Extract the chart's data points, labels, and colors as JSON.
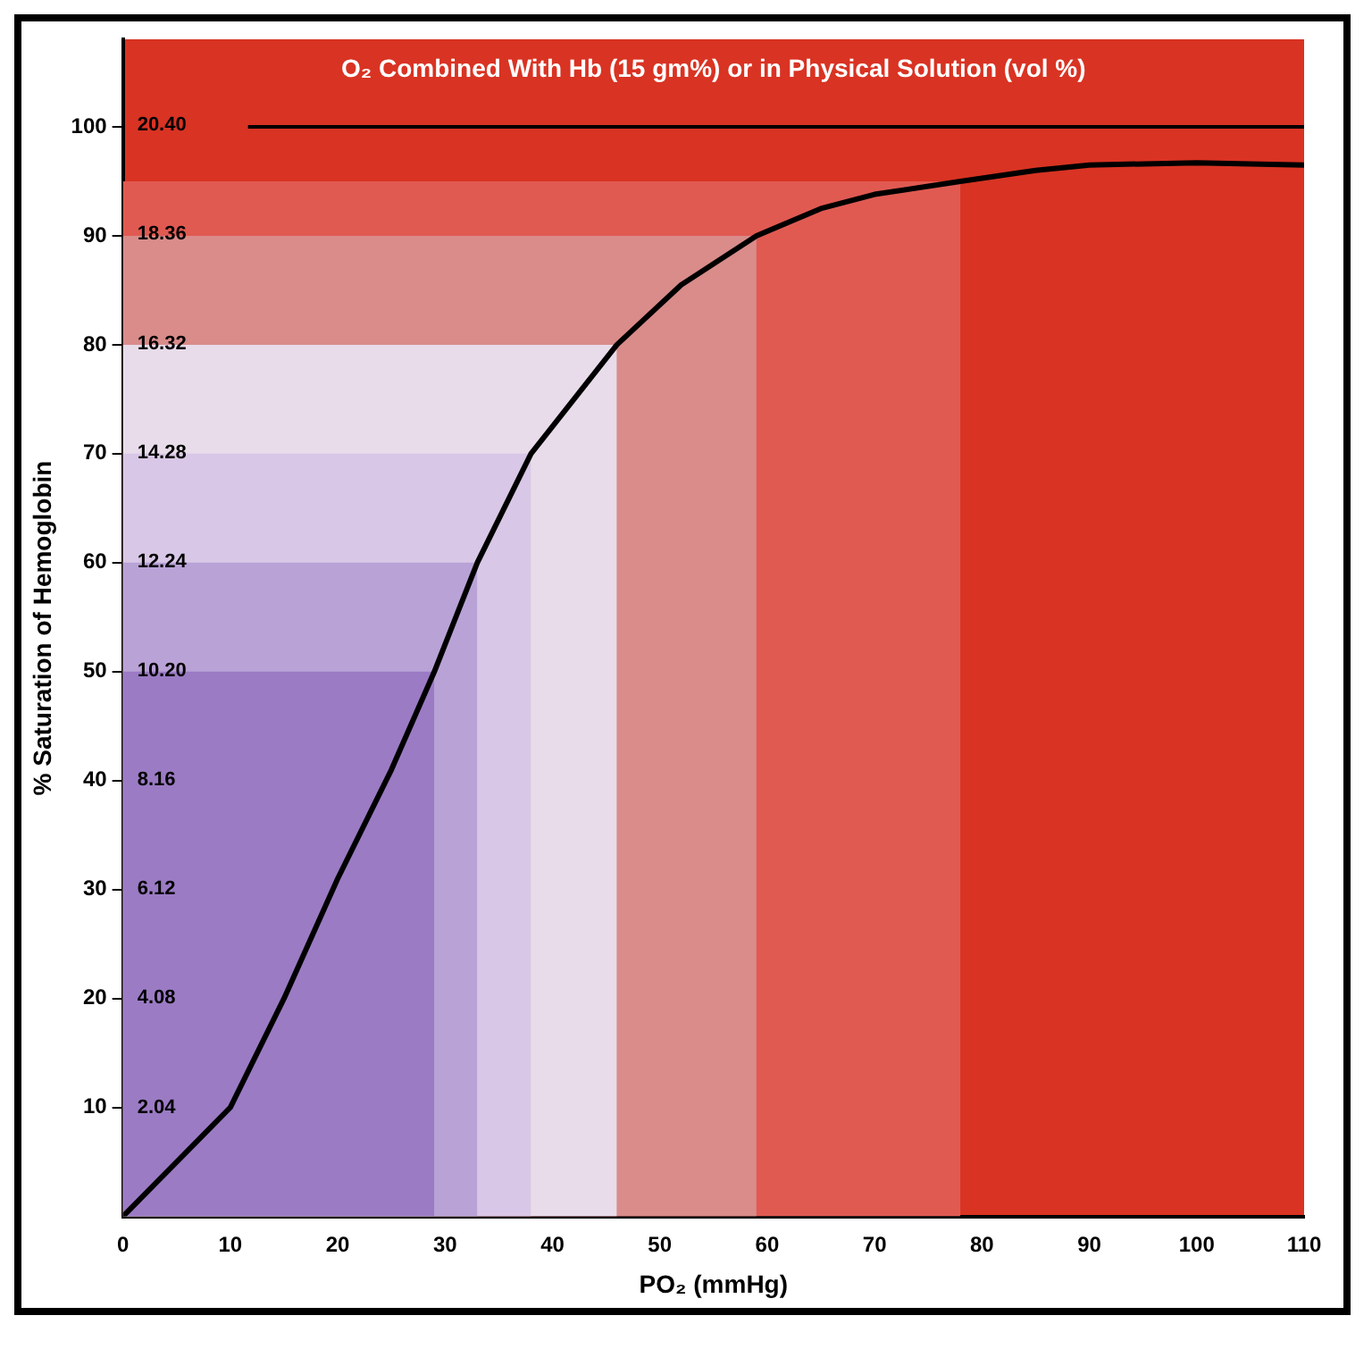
{
  "chart_data": {
    "type": "line",
    "title": "O₂ Combined With Hb (15 gm%) or in Physical Solution (vol %)",
    "xlabel": "PO₂ (mmHg)",
    "ylabel": "% Saturation of Hemoglobin",
    "xlim": [
      0,
      110
    ],
    "xticks": [
      0,
      10,
      20,
      30,
      40,
      50,
      60,
      70,
      80,
      90,
      100,
      110
    ],
    "ylim": [
      0,
      108
    ],
    "yticks": [
      10,
      20,
      30,
      40,
      50,
      60,
      70,
      80,
      90,
      100
    ],
    "y2lim": [
      0,
      22.0
    ],
    "y2ticks": [
      2.04,
      4.08,
      6.12,
      8.16,
      {
        "value": 10.2,
        "label": "10.20"
      },
      12.24,
      14.28,
      16.32,
      18.36,
      {
        "value": 20.4,
        "label": "20.40"
      }
    ],
    "grid": false,
    "legend": false,
    "marker": "none",
    "ref_lines": [
      {
        "axis": "y",
        "value": 100,
        "color": "#000000"
      }
    ],
    "series": [
      {
        "type": "area",
        "color": "#e05a52",
        "x": [
          0,
          78
        ],
        "values": [
          95,
          95
        ]
      },
      {
        "type": "area",
        "color": "#d98c8a",
        "x": [
          0,
          59
        ],
        "values": [
          90,
          90
        ]
      },
      {
        "type": "area",
        "color": "#e8dcea",
        "x": [
          0,
          46
        ],
        "values": [
          80,
          80
        ]
      },
      {
        "type": "area",
        "color": "#d8c7e6",
        "x": [
          0,
          38
        ],
        "values": [
          70,
          70
        ]
      },
      {
        "type": "area",
        "color": "#b9a2d6",
        "x": [
          0,
          33
        ],
        "values": [
          60,
          60
        ]
      },
      {
        "type": "area",
        "color": "#9b7bc4",
        "x": [
          0,
          29
        ],
        "values": [
          50,
          50
        ]
      },
      {
        "type": "line",
        "color": "#000000",
        "x": [
          0,
          5,
          10,
          15,
          20,
          25,
          29,
          33,
          38,
          46,
          52,
          59,
          65,
          70,
          78,
          85,
          90,
          100,
          110
        ],
        "values": [
          0,
          5,
          10,
          20,
          31,
          41,
          50,
          60,
          70,
          80,
          85.5,
          90,
          92.5,
          93.8,
          95,
          96,
          96.5,
          96.7,
          96.5
        ]
      }
    ]
  }
}
